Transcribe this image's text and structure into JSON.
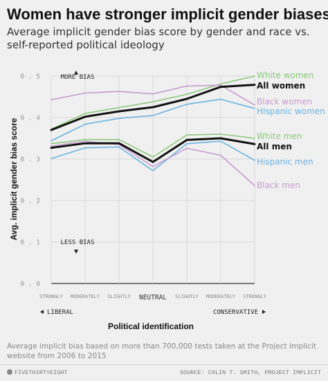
{
  "header": {
    "title": "Women have stronger implicit gender biases",
    "subtitle": "Average implicit gender bias score by gender and race vs. self-reported political ideology"
  },
  "chart_data": {
    "type": "line",
    "x": [
      "STRONGLY",
      "MODERATELY",
      "SLIGHTLY",
      "NEUTRAL",
      "SLIGHTLY",
      "MODERATELY",
      "STRONGLY"
    ],
    "ylabel": "Avg. implicit gender bias score",
    "xlabel": "Political identification",
    "ylim": [
      0,
      0.5
    ],
    "yticks": [
      "0.5",
      "0.4",
      "0.3",
      "0.2",
      "0.1",
      "0.0"
    ],
    "grid": true,
    "annotations": {
      "more_bias": "MORE BIAS",
      "less_bias": "LESS BIAS",
      "liberal": "LIBERAL",
      "conservative": "CONSERVATIVE"
    },
    "series": [
      {
        "name": "White women",
        "color": "#8bc97b",
        "bold": false,
        "values": [
          0.372,
          0.41,
          0.424,
          0.438,
          0.456,
          0.481,
          0.5
        ]
      },
      {
        "name": "All women",
        "color": "#111111",
        "bold": true,
        "values": [
          0.37,
          0.402,
          0.415,
          0.425,
          0.445,
          0.474,
          0.479
        ]
      },
      {
        "name": "Black women",
        "color": "#c79ad1",
        "bold": false,
        "values": [
          0.443,
          0.459,
          0.463,
          0.457,
          0.476,
          0.478,
          0.43
        ]
      },
      {
        "name": "Hispanic women",
        "color": "#6ab3df",
        "bold": false,
        "values": [
          0.344,
          0.384,
          0.398,
          0.405,
          0.432,
          0.444,
          0.422
        ]
      },
      {
        "name": "White men",
        "color": "#8bc97b",
        "bold": false,
        "values": [
          0.337,
          0.347,
          0.347,
          0.305,
          0.358,
          0.36,
          0.35
        ]
      },
      {
        "name": "All men",
        "color": "#111111",
        "bold": true,
        "values": [
          0.327,
          0.338,
          0.338,
          0.293,
          0.346,
          0.35,
          0.336
        ]
      },
      {
        "name": "Hispanic men",
        "color": "#6ab3df",
        "bold": false,
        "values": [
          0.301,
          0.327,
          0.329,
          0.272,
          0.337,
          0.343,
          0.297
        ]
      },
      {
        "name": "Black men",
        "color": "#c79ad1",
        "bold": false,
        "values": [
          0.331,
          0.343,
          0.335,
          0.282,
          0.326,
          0.309,
          0.236
        ]
      }
    ]
  },
  "footer": {
    "note": "Average implicit bias based on more than 700,000 tests taken at the Project Implicit website from 2006 to 2015",
    "brand": "FIVETHIRTYEIGHT",
    "source": "SOURCE: COLIN T. SMITH, PROJECT IMPLICIT"
  }
}
